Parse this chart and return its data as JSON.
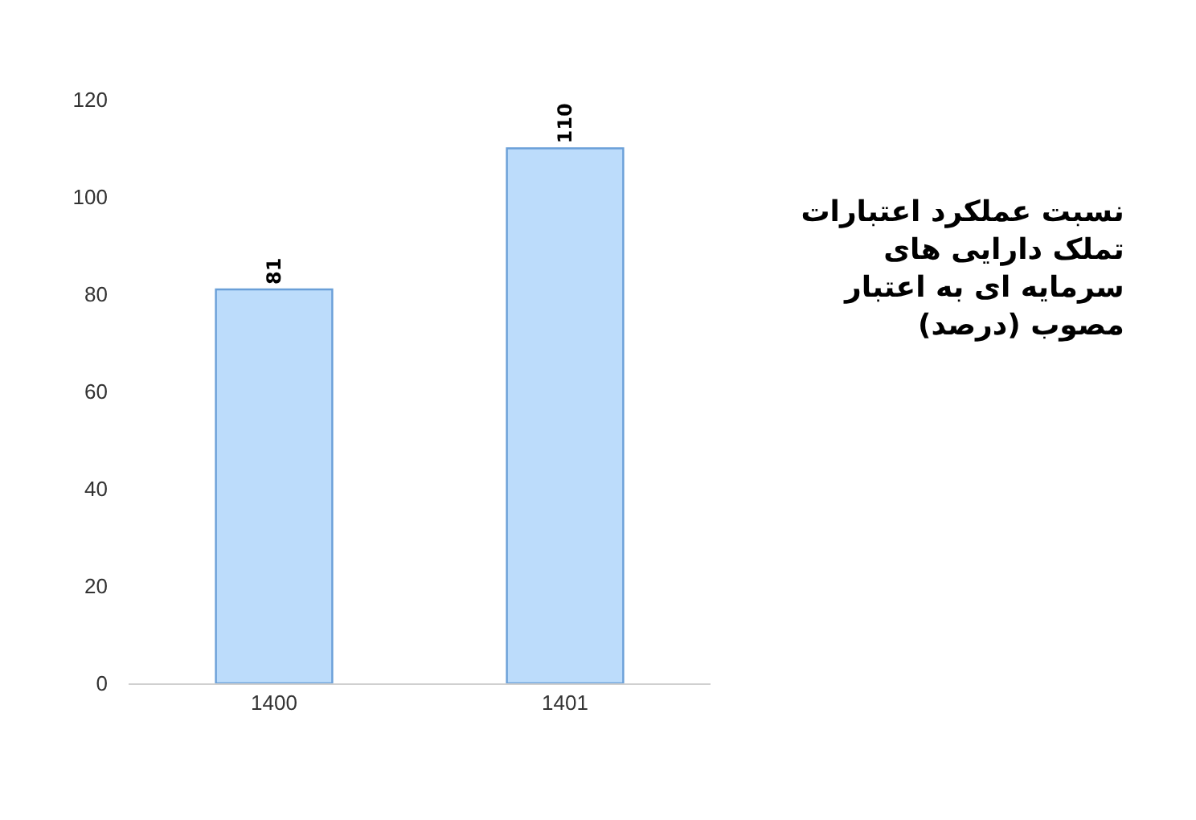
{
  "chart_data": {
    "type": "bar",
    "title": "نسبت عملکرد اعتبارات\nتملک دارایی های\nسرمایه ای به اعتبار\nمصوب (درصد)",
    "categories": [
      "1400",
      "1401"
    ],
    "values": [
      81,
      110
    ],
    "color": "#bcdcfb",
    "ylim": [
      0,
      120
    ],
    "yticks": [
      0,
      20,
      40,
      60,
      80,
      100,
      120
    ],
    "data_labels": true
  }
}
